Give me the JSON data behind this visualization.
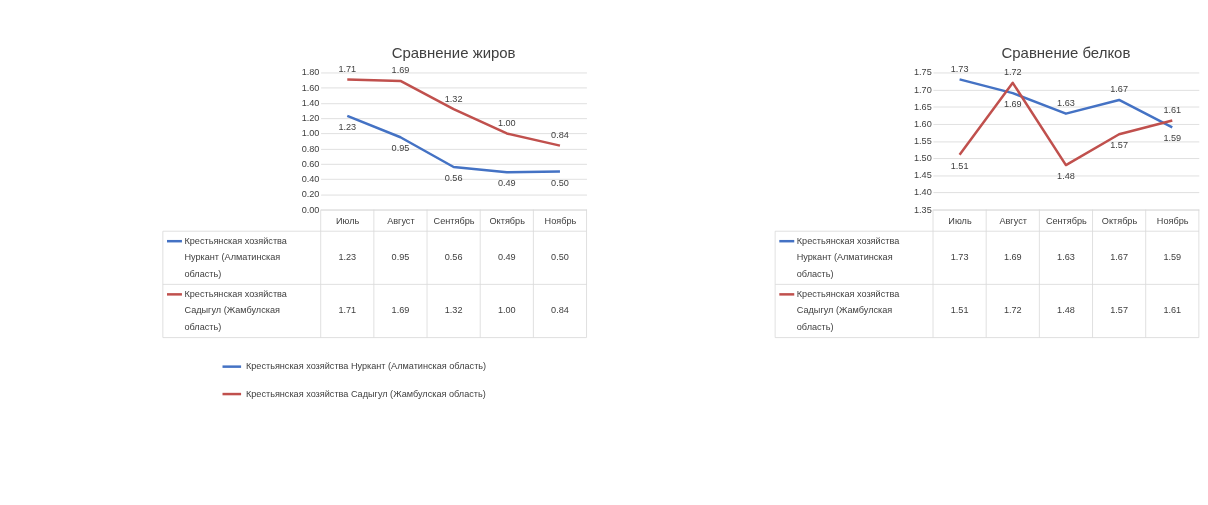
{
  "chart_data": [
    {
      "type": "line",
      "title": "Сравнение жиров",
      "categories": [
        "Июль",
        "Август",
        "Сентябрь",
        "Октябрь",
        "Ноябрь"
      ],
      "series": [
        {
          "name": "Крестьянская хозяйства Нуркант (Алматинская область)",
          "color": "#4472c4",
          "values": [
            1.23,
            0.95,
            0.56,
            0.49,
            0.5
          ],
          "value_labels": [
            "1.23",
            "0.95",
            "0.56",
            "0.49",
            "0.50"
          ]
        },
        {
          "name": "Крестьянская хозяйства Садыгул (Жамбулская область)",
          "color": "#c0504d",
          "values": [
            1.71,
            1.69,
            1.32,
            1.0,
            0.84
          ],
          "value_labels": [
            "1.71",
            "1.69",
            "1.32",
            "1.00",
            "0.84"
          ]
        }
      ],
      "ylim": [
        0,
        1.8
      ],
      "yticks": [
        {
          "value": 0,
          "label": "0.00"
        },
        {
          "value": 0.2,
          "label": "0.20"
        },
        {
          "value": 0.4,
          "label": "0.40"
        },
        {
          "value": 0.6,
          "label": "0.60"
        },
        {
          "value": 0.8,
          "label": "0.80"
        },
        {
          "value": 1.0,
          "label": "1.00"
        },
        {
          "value": 1.2,
          "label": "1.20"
        },
        {
          "value": 1.4,
          "label": "1.40"
        },
        {
          "value": 1.6,
          "label": "1.60"
        },
        {
          "value": 1.8,
          "label": "1.80"
        }
      ],
      "grid": "y",
      "legend": "bottom",
      "marker": "none",
      "line_style": "solid"
    },
    {
      "type": "line",
      "title": "Сравнение белков",
      "categories": [
        "Июль",
        "Август",
        "Сентябрь",
        "Октябрь",
        "Ноябрь"
      ],
      "series": [
        {
          "name": "Крестьянская хозяйства Нуркант (Алматинская область)",
          "color": "#4472c4",
          "values": [
            1.73,
            1.69,
            1.63,
            1.67,
            1.59
          ],
          "value_labels": [
            "1.73",
            "1.69",
            "1.63",
            "1.67",
            "1.59"
          ]
        },
        {
          "name": "Крестьянская хозяйства Садыгул (Жамбулская область)",
          "color": "#c0504d",
          "values": [
            1.51,
            1.72,
            1.48,
            1.57,
            1.61
          ],
          "value_labels": [
            "1.51",
            "1.72",
            "1.48",
            "1.57",
            "1.61"
          ]
        }
      ],
      "ylim": [
        1.35,
        1.75
      ],
      "yticks": [
        {
          "value": 1.35,
          "label": "1.35"
        },
        {
          "value": 1.4,
          "label": "1.40"
        },
        {
          "value": 1.45,
          "label": "1.45"
        },
        {
          "value": 1.5,
          "label": "1.50"
        },
        {
          "value": 1.55,
          "label": "1.55"
        },
        {
          "value": 1.6,
          "label": "1.60"
        },
        {
          "value": 1.65,
          "label": "1.65"
        },
        {
          "value": 1.7,
          "label": "1.70"
        },
        {
          "value": 1.75,
          "label": "1.75"
        }
      ],
      "grid": "y",
      "legend": "bottom",
      "marker": "none",
      "line_style": "solid"
    }
  ]
}
